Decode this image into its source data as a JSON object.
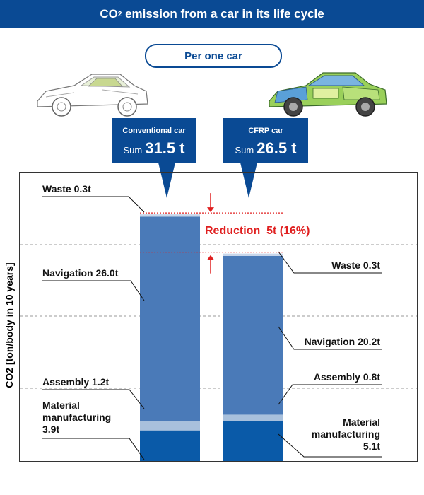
{
  "header": {
    "title_main": "CO",
    "title_sub": "2",
    "title_rest": " emission from a car in its life cycle"
  },
  "pill": "Per one car",
  "callouts": [
    {
      "name": "Conventional car",
      "sum_prefix": "Sum",
      "sum_value": "31.5 t"
    },
    {
      "name": "CFRP car",
      "sum_prefix": "Sum",
      "sum_value": "26.5 t"
    }
  ],
  "reduction": "Reduction  5t (16%)",
  "ylabel": "CO2 [ton/body in 10 years]",
  "colors": {
    "navy": "#0a4a94",
    "navigation": "#4a7ab8",
    "assembly": "#a8c0dc",
    "waste": "#c8d6ea",
    "material": "#0a5aa8",
    "red": "#e02020"
  },
  "chart_data": {
    "type": "bar",
    "stacked": true,
    "categories": [
      "Conventional car",
      "CFRP car"
    ],
    "series": [
      {
        "name": "Material manufacturing",
        "values": [
          3.9,
          5.1
        ]
      },
      {
        "name": "Assembly",
        "values": [
          1.2,
          0.8
        ]
      },
      {
        "name": "Navigation",
        "values": [
          26.0,
          20.2
        ]
      },
      {
        "name": "Waste",
        "values": [
          0.3,
          0.3
        ]
      }
    ],
    "totals": [
      31.5,
      26.5
    ],
    "ylabel": "CO2 [ton/body in 10 years]",
    "grid": true
  },
  "labels": {
    "left": {
      "waste": "Waste 0.3t",
      "navigation": "Navigation 26.0t",
      "assembly": "Assembly 1.2t",
      "material_l1": "Material",
      "material_l2": "manufacturing",
      "material_l3": "3.9t"
    },
    "right": {
      "waste": "Waste 0.3t",
      "navigation": "Navigation 20.2t",
      "assembly": "Assembly 0.8t",
      "material_l1": "Material",
      "material_l2": "manufacturing",
      "material_l3": "5.1t"
    }
  }
}
